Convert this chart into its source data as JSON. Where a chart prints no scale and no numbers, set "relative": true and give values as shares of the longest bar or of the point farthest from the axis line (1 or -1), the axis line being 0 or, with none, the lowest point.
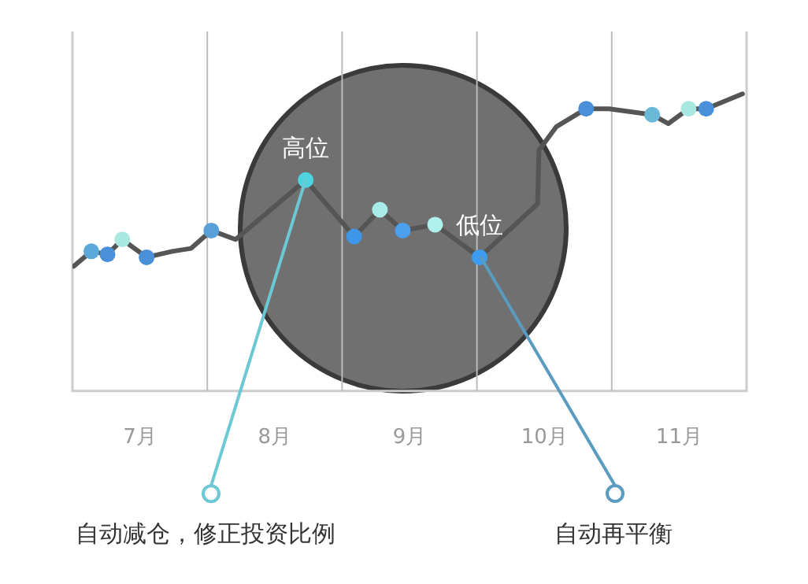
{
  "chart_data": {
    "type": "line",
    "relative": true,
    "xlim": [
      6.5,
      11.5
    ],
    "xticks": [
      {
        "value": 7,
        "label": "7月"
      },
      {
        "value": 8,
        "label": "8月"
      },
      {
        "value": 9,
        "label": "9月"
      },
      {
        "value": 10,
        "label": "10月"
      },
      {
        "value": 11,
        "label": "11月"
      }
    ],
    "ref_lines": [
      {
        "axis": "x",
        "value": 7.5,
        "color": "#bbbbbb"
      },
      {
        "axis": "x",
        "value": 8.5,
        "color": "#bbbbbb"
      },
      {
        "axis": "x",
        "value": 9.5,
        "color": "#bbbbbb"
      },
      {
        "axis": "x",
        "value": 10.5,
        "color": "#bbbbbb"
      }
    ],
    "series": [
      {
        "color": "#555555",
        "marker": "none",
        "x": [
          6.51,
          6.64,
          6.76,
          6.87,
          7.05,
          7.24,
          7.38,
          7.53,
          7.71,
          8.23,
          8.59,
          8.78,
          8.95,
          9.19,
          9.52,
          9.95,
          9.96,
          10.09,
          10.31,
          10.48,
          10.8,
          10.92,
          11.07,
          11.2,
          11.47
        ],
        "values": [
          0.42,
          0.47,
          0.46,
          0.51,
          0.45,
          0.47,
          0.48,
          0.54,
          0.51,
          0.71,
          0.52,
          0.61,
          0.54,
          0.56,
          0.45,
          0.63,
          0.81,
          0.89,
          0.95,
          0.95,
          0.93,
          0.9,
          0.95,
          0.95,
          1
        ]
      },
      {
        "type": "scatter",
        "marker": "circle",
        "x": [
          6.64,
          6.76,
          6.87,
          7.05,
          7.53,
          8.23,
          8.59,
          8.78,
          8.95,
          9.19,
          9.52,
          10.31,
          10.8,
          11.07,
          11.2
        ],
        "values": [
          0.47,
          0.46,
          0.51,
          0.45,
          0.54,
          0.71,
          0.52,
          0.61,
          0.54,
          0.56,
          0.45,
          0.95,
          0.93,
          0.95,
          0.95
        ],
        "colors": [
          "#5aa9d8",
          "#4a90d9",
          "#a8e8e0",
          "#4a90d9",
          "#5aa0d8",
          "#4dd4e0",
          "#3f95e8",
          "#a8ecea",
          "#4aa0ec",
          "#b0f0ec",
          "#3d9bf0",
          "#4a90d9",
          "#6ab8d8",
          "#a8e8e0",
          "#4a90d9"
        ]
      }
    ],
    "annotations": [
      {
        "text": "高位",
        "x": 8.23,
        "y": 0.71
      },
      {
        "text": "低位",
        "x": 9.52,
        "y": 0.45
      },
      "自动减仓，修正投资比例",
      "自动再平衡"
    ]
  }
}
